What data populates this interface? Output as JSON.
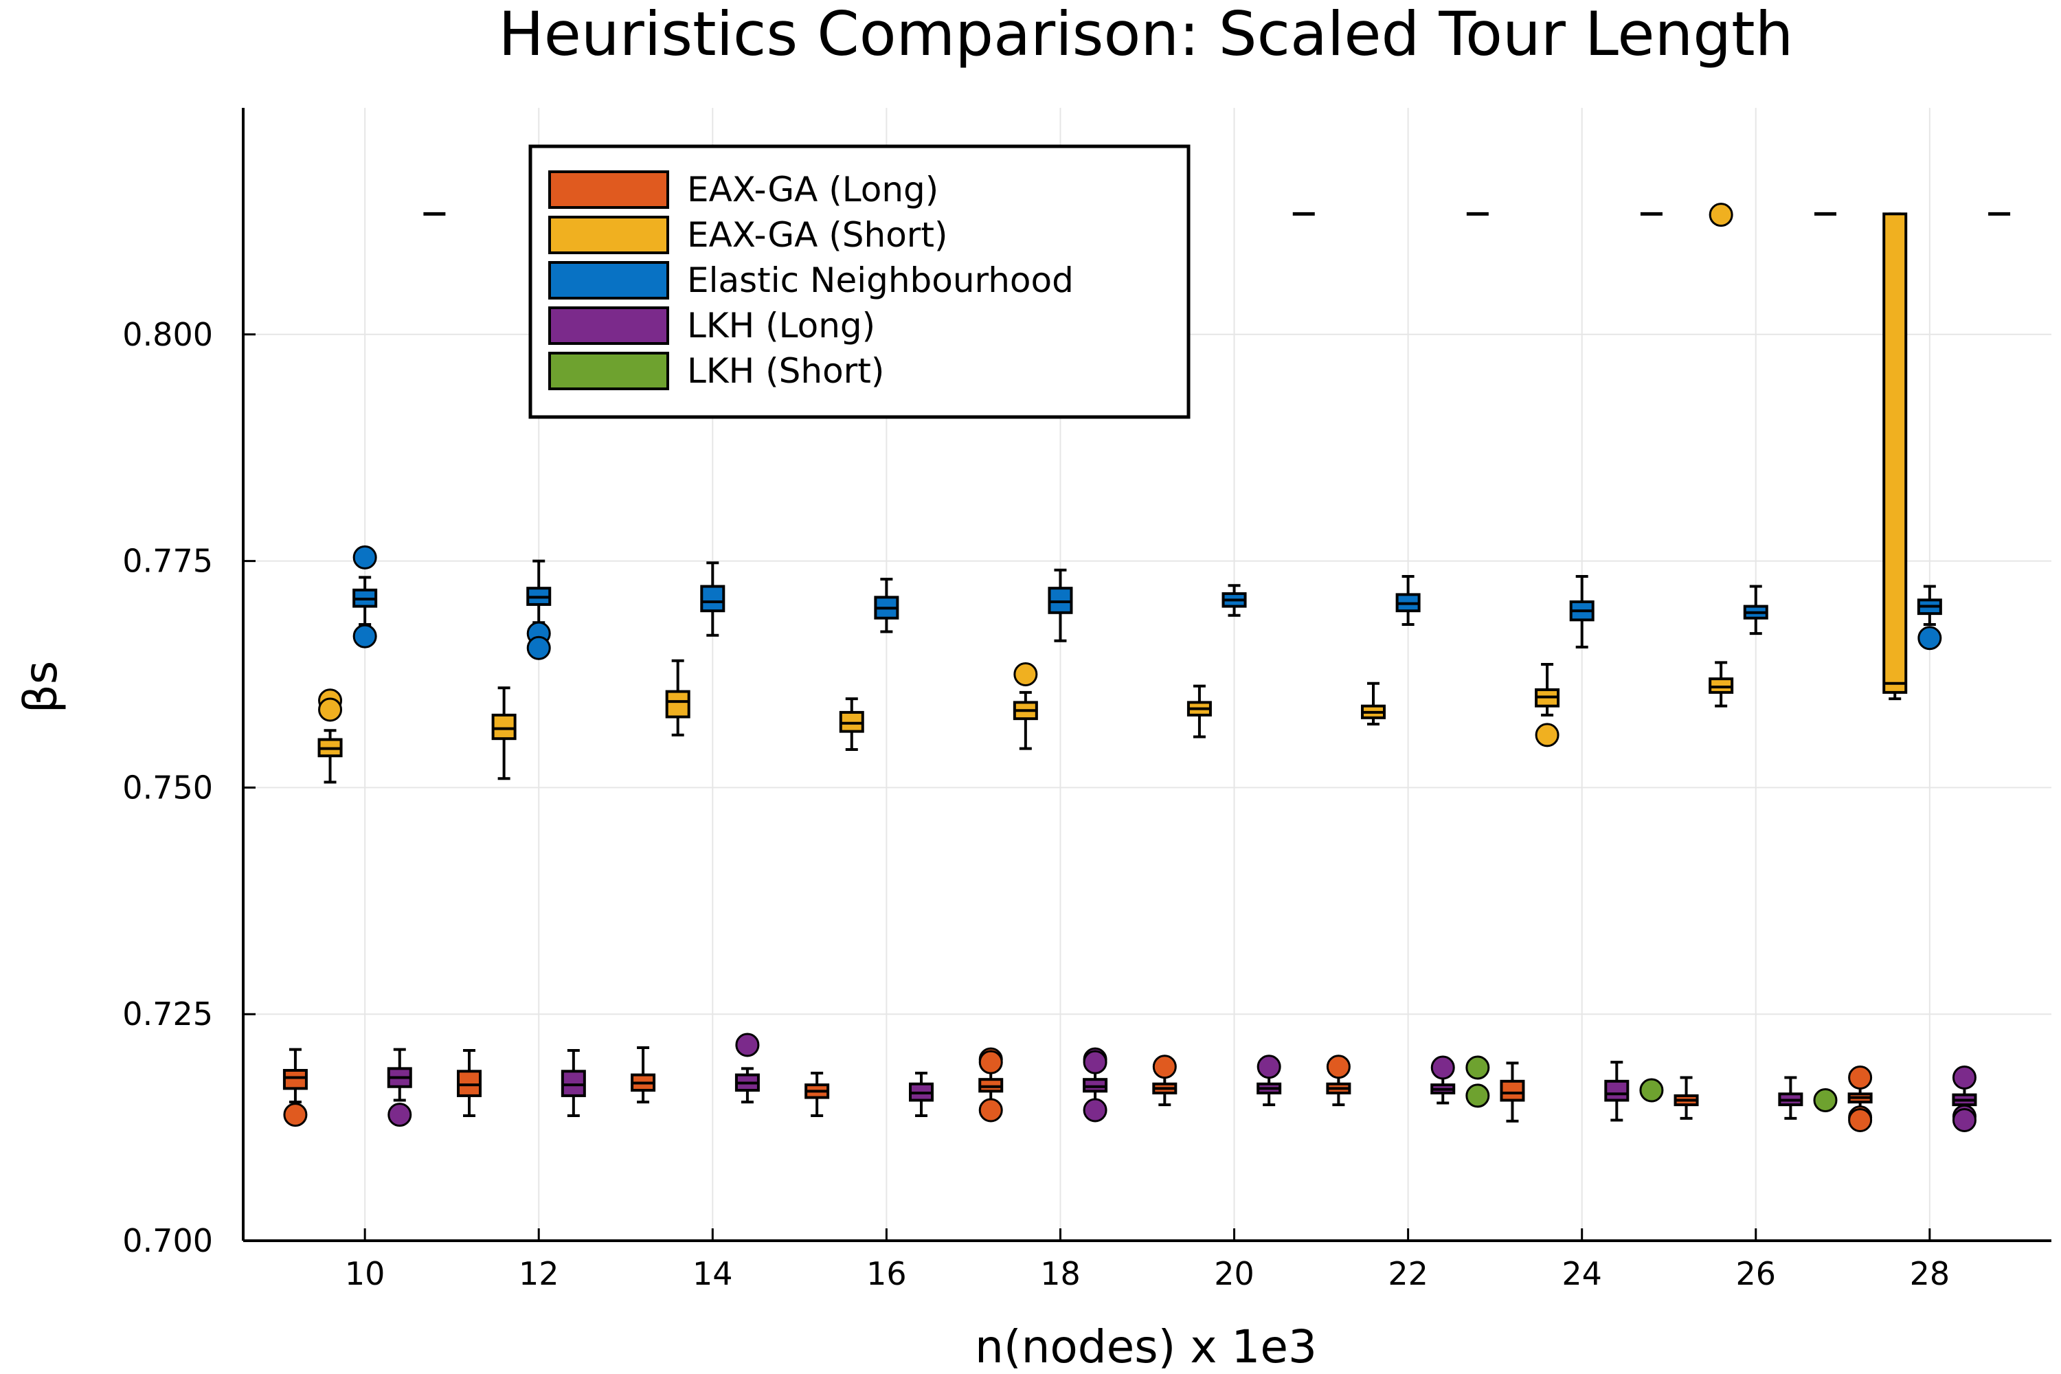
{
  "chart_data": {
    "type": "box",
    "title": "Heuristics Comparison: Scaled Tour Length",
    "xlabel": "n(nodes) x 1e3",
    "ylabel": "βs",
    "x_ticks": [
      "10",
      "12",
      "14",
      "16",
      "18",
      "20",
      "22",
      "24",
      "26",
      "28"
    ],
    "y_ticks": [
      "0.700",
      "0.725",
      "0.750",
      "0.775",
      "0.800"
    ],
    "xlim": [
      8.6,
      29.4
    ],
    "ylim": [
      0.7,
      0.825
    ],
    "grid": true,
    "legend_position": "top-center",
    "x": [
      10,
      12,
      14,
      16,
      18,
      20,
      22,
      24,
      26,
      28
    ],
    "series": [
      {
        "name": "EAX-GA (Long)",
        "color": "#e05a1f",
        "boxes": [
          {
            "whisker_low": 0.7153,
            "q1": 0.7168,
            "median": 0.718,
            "q3": 0.7188,
            "whisker_high": 0.7211,
            "outliers": [
              0.7139
            ]
          },
          {
            "whisker_low": 0.7138,
            "q1": 0.716,
            "median": 0.7172,
            "q3": 0.7187,
            "whisker_high": 0.721
          },
          {
            "whisker_low": 0.7153,
            "q1": 0.7166,
            "median": 0.7174,
            "q3": 0.7183,
            "whisker_high": 0.7213
          },
          {
            "whisker_low": 0.7138,
            "q1": 0.7158,
            "median": 0.7165,
            "q3": 0.7172,
            "whisker_high": 0.7185
          },
          {
            "whisker_low": 0.7153,
            "q1": 0.7165,
            "median": 0.717,
            "q3": 0.7178,
            "whisker_high": 0.719,
            "outliers": [
              0.72,
              0.7197,
              0.7144
            ]
          },
          {
            "whisker_low": 0.715,
            "q1": 0.7163,
            "median": 0.7168,
            "q3": 0.7173,
            "whisker_high": 0.7183,
            "outliers": [
              0.7192
            ]
          },
          {
            "whisker_low": 0.715,
            "q1": 0.7163,
            "median": 0.7168,
            "q3": 0.7173,
            "whisker_high": 0.7183,
            "outliers": [
              0.7192
            ]
          },
          {
            "whisker_low": 0.7132,
            "q1": 0.7155,
            "median": 0.7163,
            "q3": 0.7176,
            "whisker_high": 0.7196
          },
          {
            "whisker_low": 0.7135,
            "q1": 0.715,
            "median": 0.7155,
            "q3": 0.716,
            "whisker_high": 0.718
          },
          {
            "whisker_low": 0.7135,
            "q1": 0.7153,
            "median": 0.7158,
            "q3": 0.7162,
            "whisker_high": 0.7175,
            "outliers": [
              0.718,
              0.7136,
              0.7133
            ]
          }
        ]
      },
      {
        "name": "EAX-GA (Short)",
        "color": "#f0b020",
        "boxes": [
          {
            "whisker_low": 0.7506,
            "q1": 0.7535,
            "median": 0.7543,
            "q3": 0.7553,
            "whisker_high": 0.7563,
            "outliers": [
              0.7596,
              0.7586
            ]
          },
          {
            "whisker_low": 0.751,
            "q1": 0.7554,
            "median": 0.7565,
            "q3": 0.758,
            "whisker_high": 0.761
          },
          {
            "whisker_low": 0.7558,
            "q1": 0.7578,
            "median": 0.7595,
            "q3": 0.7606,
            "whisker_high": 0.764
          },
          {
            "whisker_low": 0.7542,
            "q1": 0.7562,
            "median": 0.7571,
            "q3": 0.7583,
            "whisker_high": 0.7598
          },
          {
            "whisker_low": 0.7543,
            "q1": 0.7576,
            "median": 0.7585,
            "q3": 0.7594,
            "whisker_high": 0.7605,
            "outliers": [
              0.7625
            ]
          },
          {
            "whisker_low": 0.7556,
            "q1": 0.758,
            "median": 0.7587,
            "q3": 0.7594,
            "whisker_high": 0.7612
          },
          {
            "whisker_low": 0.757,
            "q1": 0.7577,
            "median": 0.7583,
            "q3": 0.759,
            "whisker_high": 0.7615
          },
          {
            "whisker_low": 0.758,
            "q1": 0.759,
            "median": 0.76,
            "q3": 0.7608,
            "whisker_high": 0.7636,
            "outliers": [
              0.7558
            ]
          },
          {
            "whisker_low": 0.759,
            "q1": 0.7605,
            "median": 0.7611,
            "q3": 0.762,
            "whisker_high": 0.7638,
            "outliers": [
              0.8132
            ]
          },
          {
            "whisker_low": 0.7598,
            "q1": 0.7605,
            "median": 0.7615,
            "q3": 0.8133,
            "whisker_high": 0.8133
          }
        ]
      },
      {
        "name": "Elastic Neighbourhood",
        "color": "#0872c4",
        "boxes": [
          {
            "whisker_low": 0.768,
            "q1": 0.77,
            "median": 0.7708,
            "q3": 0.7718,
            "whisker_high": 0.7732,
            "outliers": [
              0.7754,
              0.7667
            ]
          },
          {
            "whisker_low": 0.7682,
            "q1": 0.7702,
            "median": 0.771,
            "q3": 0.772,
            "whisker_high": 0.775,
            "outliers": [
              0.767,
              0.7654
            ]
          },
          {
            "whisker_low": 0.7668,
            "q1": 0.7695,
            "median": 0.7705,
            "q3": 0.7722,
            "whisker_high": 0.7748
          },
          {
            "whisker_low": 0.7672,
            "q1": 0.7687,
            "median": 0.7698,
            "q3": 0.771,
            "whisker_high": 0.773
          },
          {
            "whisker_low": 0.7662,
            "q1": 0.7693,
            "median": 0.7705,
            "q3": 0.772,
            "whisker_high": 0.774
          },
          {
            "whisker_low": 0.769,
            "q1": 0.77,
            "median": 0.7707,
            "q3": 0.7714,
            "whisker_high": 0.7723
          },
          {
            "whisker_low": 0.768,
            "q1": 0.7695,
            "median": 0.7703,
            "q3": 0.7713,
            "whisker_high": 0.7733
          },
          {
            "whisker_low": 0.7655,
            "q1": 0.7685,
            "median": 0.7695,
            "q3": 0.7705,
            "whisker_high": 0.7733
          },
          {
            "whisker_low": 0.767,
            "q1": 0.7687,
            "median": 0.7693,
            "q3": 0.77,
            "whisker_high": 0.7722
          },
          {
            "whisker_low": 0.768,
            "q1": 0.7692,
            "median": 0.77,
            "q3": 0.7707,
            "whisker_high": 0.7722,
            "outliers": [
              0.7665
            ]
          }
        ]
      },
      {
        "name": "LKH (Long)",
        "color": "#7b2a8b",
        "boxes": [
          {
            "whisker_low": 0.7155,
            "q1": 0.717,
            "median": 0.718,
            "q3": 0.719,
            "whisker_high": 0.7211,
            "outliers": [
              0.7139
            ]
          },
          {
            "whisker_low": 0.7138,
            "q1": 0.716,
            "median": 0.7172,
            "q3": 0.7187,
            "whisker_high": 0.721
          },
          {
            "whisker_low": 0.7153,
            "q1": 0.7166,
            "median": 0.7174,
            "q3": 0.7183,
            "whisker_high": 0.719,
            "outliers": [
              0.7216
            ]
          },
          {
            "whisker_low": 0.7138,
            "q1": 0.7155,
            "median": 0.7163,
            "q3": 0.7173,
            "whisker_high": 0.7185
          },
          {
            "whisker_low": 0.7153,
            "q1": 0.7165,
            "median": 0.717,
            "q3": 0.7178,
            "whisker_high": 0.719,
            "outliers": [
              0.72,
              0.7197,
              0.7144
            ]
          },
          {
            "whisker_low": 0.715,
            "q1": 0.7163,
            "median": 0.7168,
            "q3": 0.7173,
            "whisker_high": 0.7183,
            "outliers": [
              0.7192
            ]
          },
          {
            "whisker_low": 0.7152,
            "q1": 0.7163,
            "median": 0.7167,
            "q3": 0.7172,
            "whisker_high": 0.7183,
            "outliers": [
              0.7191
            ]
          },
          {
            "whisker_low": 0.7133,
            "q1": 0.7155,
            "median": 0.7162,
            "q3": 0.7176,
            "whisker_high": 0.7197
          },
          {
            "whisker_low": 0.7135,
            "q1": 0.715,
            "median": 0.7155,
            "q3": 0.7162,
            "whisker_high": 0.718
          },
          {
            "whisker_low": 0.7133,
            "q1": 0.715,
            "median": 0.7155,
            "q3": 0.7161,
            "whisker_high": 0.7175,
            "outliers": [
              0.718,
              0.7137,
              0.7133
            ]
          }
        ]
      },
      {
        "name": "LKH (Short)",
        "color": "#6ea22f",
        "boxes": [
          {
            "collapsed_at": 0.8133
          },
          null,
          null,
          null,
          null,
          {
            "collapsed_at": 0.8133
          },
          {
            "collapsed_at": 0.8133,
            "outliers": [
              0.7191,
              0.716
            ]
          },
          {
            "collapsed_at": 0.8133,
            "outliers": [
              0.7166
            ]
          },
          {
            "collapsed_at": 0.8133,
            "outliers": [
              0.7155
            ]
          },
          {
            "collapsed_at": 0.8133
          }
        ]
      }
    ]
  }
}
